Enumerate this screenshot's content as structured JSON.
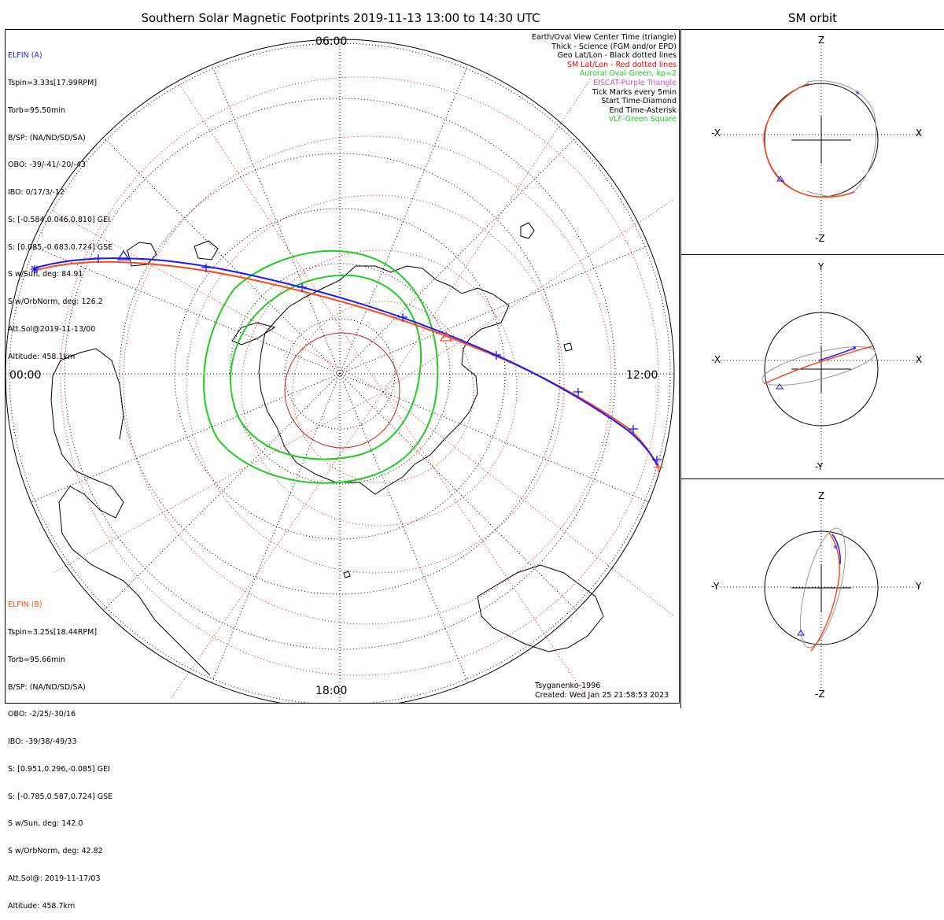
{
  "title": "Southern Solar Magnetic Footprints 2019-11-13 13:00 to 14:30 UTC",
  "orbit_title": "SM orbit",
  "elfin_a": {
    "name": "ELFIN (A)",
    "lines": [
      "Tspin=3.33s[17.99RPM]",
      "Torb=95.50min",
      "B/SP: (NA/ND/SD/SA)",
      "OBO: -39/-41/-20/-43",
      "IBO: 0/17/3/-12",
      "S: [-0.584,0.046,0.810] GEI",
      "S: [0.085,-0.683,0.724] GSE",
      "S w/Sun, deg: 84.91",
      "S w/OrbNorm, deg: 126.2",
      "Att.Sol@2019-11-13/00",
      "Altitude: 458.1km"
    ],
    "color": "#1a1aff"
  },
  "elfin_b": {
    "name": "ELFIN (B)",
    "lines": [
      "Tspin=3.25s[18.44RPM]",
      "Torb=95.66min",
      "B/SP: (NA/ND/SD/SA)",
      "OBO: -2/25/-30/16",
      "IBO: -39/38/-49/33",
      "S: [0.951,0.296,-0.085] GEI",
      "S: [-0.785,0.587,0.724] GSE",
      "S w/Sun, deg: 142.0",
      "S w/OrbNorm, deg: 42.82",
      "Att.Sol@: 2019-11-17/03",
      "Altitude: 458.7km"
    ],
    "color": "#ff4a1a"
  },
  "legend": [
    {
      "text": "Earth/Oval View Center Time (triangle)",
      "color": "#000000"
    },
    {
      "text": "Thick - Science (FGM and/or EPD)",
      "color": "#000000"
    },
    {
      "text": "Geo Lat/Lon - Black dotted lines",
      "color": "#000000"
    },
    {
      "text": "SM Lat/Lon - Red dotted lines",
      "color": "#ff0000"
    },
    {
      "text": "Auroral Oval-Green, kp=2",
      "color": "#22cc22"
    },
    {
      "text": "EISCAT-Purple Triangle",
      "color": "#cc55cc"
    },
    {
      "text": "Tick Marks every 5min",
      "color": "#000000"
    },
    {
      "text": "Start Time-Diamond",
      "color": "#000000"
    },
    {
      "text": "End Time-Asterisk",
      "color": "#000000"
    },
    {
      "text": "VLF-Green Square",
      "color": "#22cc22"
    }
  ],
  "mlt_labels": {
    "top": "06:00",
    "left": "00:00",
    "right": "12:00",
    "bottom": "18:00"
  },
  "credit": {
    "model": "Tsyganenko-1996",
    "created": "Created: Wed Jan 25 21:58:53 2023"
  },
  "orbit_panels": [
    {
      "left": "-X",
      "right": "X",
      "top": "Z",
      "bottom": "-Z"
    },
    {
      "left": "-X",
      "right": "X",
      "top": "Y",
      "bottom": "-Y"
    },
    {
      "left": "-Y",
      "right": "Y",
      "top": "Z",
      "bottom": "-Z"
    }
  ],
  "colors": {
    "elfin_a": "#1a1aff",
    "elfin_b": "#ff4a1a",
    "auroral_oval": "#22cc22",
    "sm_grid": "#ff0000",
    "geo_grid": "#000000",
    "orbit_gray": "#999999"
  }
}
